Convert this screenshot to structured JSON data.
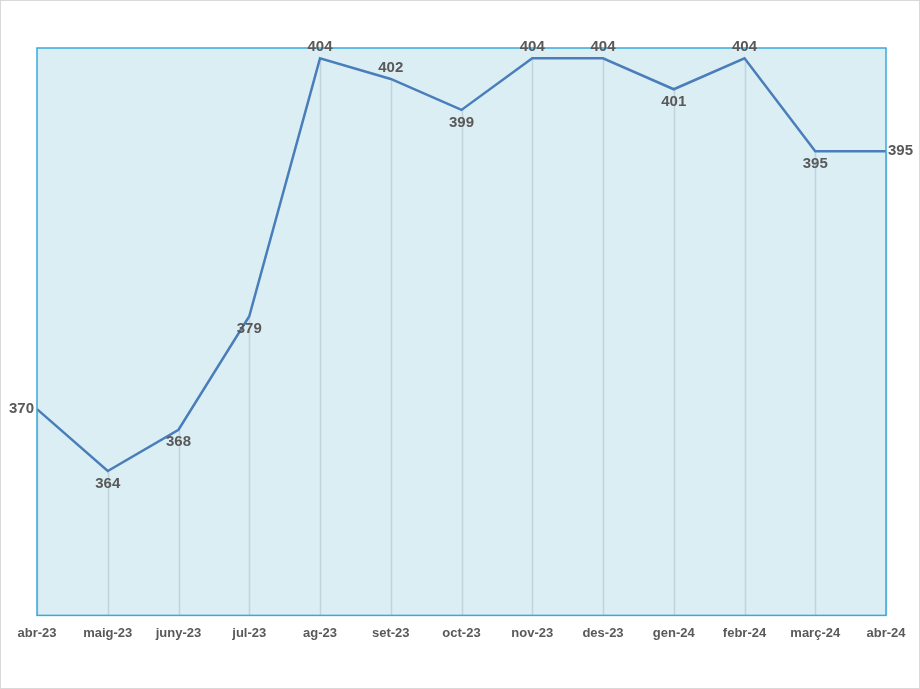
{
  "chart_data": {
    "type": "line",
    "categories": [
      "abr-23",
      "maig-23",
      "juny-23",
      "jul-23",
      "ag-23",
      "set-23",
      "oct-23",
      "nov-23",
      "des-23",
      "gen-24",
      "febr-24",
      "març-24",
      "abr-24"
    ],
    "values": [
      370,
      364,
      368,
      379,
      404,
      402,
      399,
      404,
      404,
      401,
      404,
      395,
      395
    ],
    "color": "#4a7ebb",
    "ylim": [
      350,
      405
    ],
    "grid": "x",
    "data_labels": true,
    "tick_labels": "x",
    "marker": "none"
  }
}
